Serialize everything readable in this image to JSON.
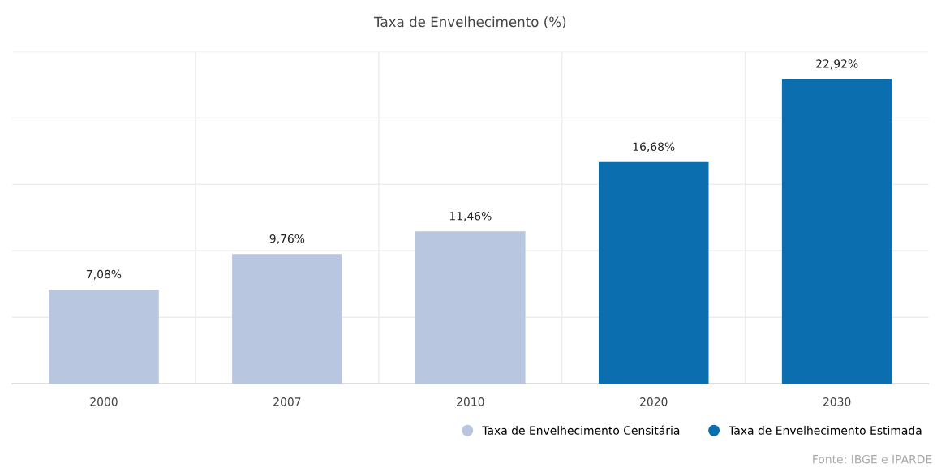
{
  "chart_data": {
    "type": "bar",
    "title": "Taxa de Envelhecimento (%)",
    "categories": [
      "2000",
      "2007",
      "2010",
      "2020",
      "2030"
    ],
    "series": [
      {
        "name": "Taxa de Envelhecimento Censitária",
        "color": "#b9c6df",
        "values": [
          7.08,
          9.76,
          11.46,
          null,
          null
        ],
        "value_labels": [
          "7,08%",
          "9,76%",
          "11,46%",
          null,
          null
        ]
      },
      {
        "name": "Taxa de Envelhecimento Estimada",
        "color": "#0b6eae",
        "values": [
          null,
          null,
          null,
          16.68,
          22.92
        ],
        "value_labels": [
          null,
          null,
          null,
          "16,68%",
          "22,92%"
        ]
      }
    ],
    "ylim": [
      0,
      25
    ],
    "yticks": [
      {
        "value": 0,
        "label": null
      },
      {
        "value": 5,
        "label": null
      },
      {
        "value": 10,
        "label": null
      },
      {
        "value": 15,
        "label": null
      },
      {
        "value": 20,
        "label": null
      },
      {
        "value": 25,
        "label": null
      }
    ],
    "tick_labels": "x",
    "grid": true,
    "legend": "bottom right",
    "annotations": [
      "Fonte: IBGE e IPARDE"
    ]
  }
}
